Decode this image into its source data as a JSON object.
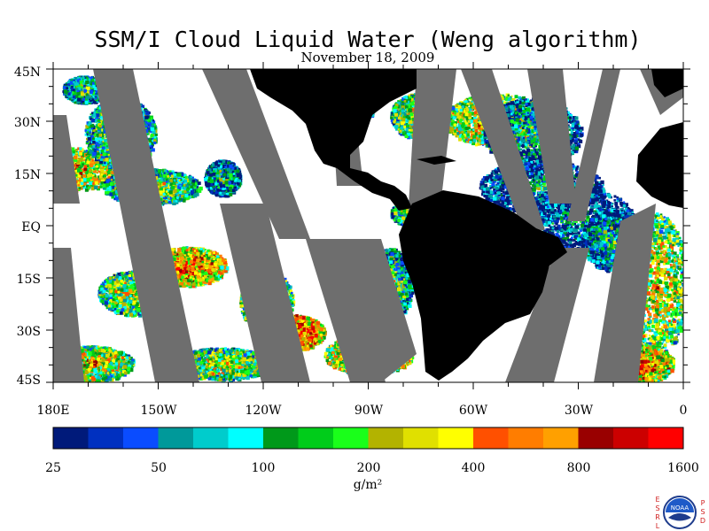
{
  "title": "SSM/I Cloud Liquid Water (Weng algorithm)",
  "date": "November 18, 2009",
  "lat_labels": [
    "45N",
    "30N",
    "15N",
    "EQ",
    "15S",
    "30S",
    "45S"
  ],
  "lon_labels": [
    "180E",
    "150W",
    "120W",
    "90W",
    "60W",
    "30W",
    "0"
  ],
  "colorbar": {
    "labels": [
      "25",
      "50",
      "100",
      "200",
      "400",
      "800",
      "1600"
    ],
    "units": "g/m²",
    "colors": [
      "#001a7a",
      "#0030c0",
      "#0a4cff",
      "#00999a",
      "#00cccc",
      "#00ffff",
      "#00991a",
      "#00cc1a",
      "#1aff1a",
      "#b3b300",
      "#e0e000",
      "#ffff00",
      "#ff5000",
      "#ff7d00",
      "#ffa000",
      "#990000",
      "#cc0000",
      "#ff0000"
    ]
  },
  "colors": {
    "land": "#000000",
    "no_data": "#6e6e6e",
    "clear": "#ffffff"
  },
  "logo": {
    "left_letters": "ESRL",
    "right_letters": "PSD",
    "center": "NOAA"
  }
}
